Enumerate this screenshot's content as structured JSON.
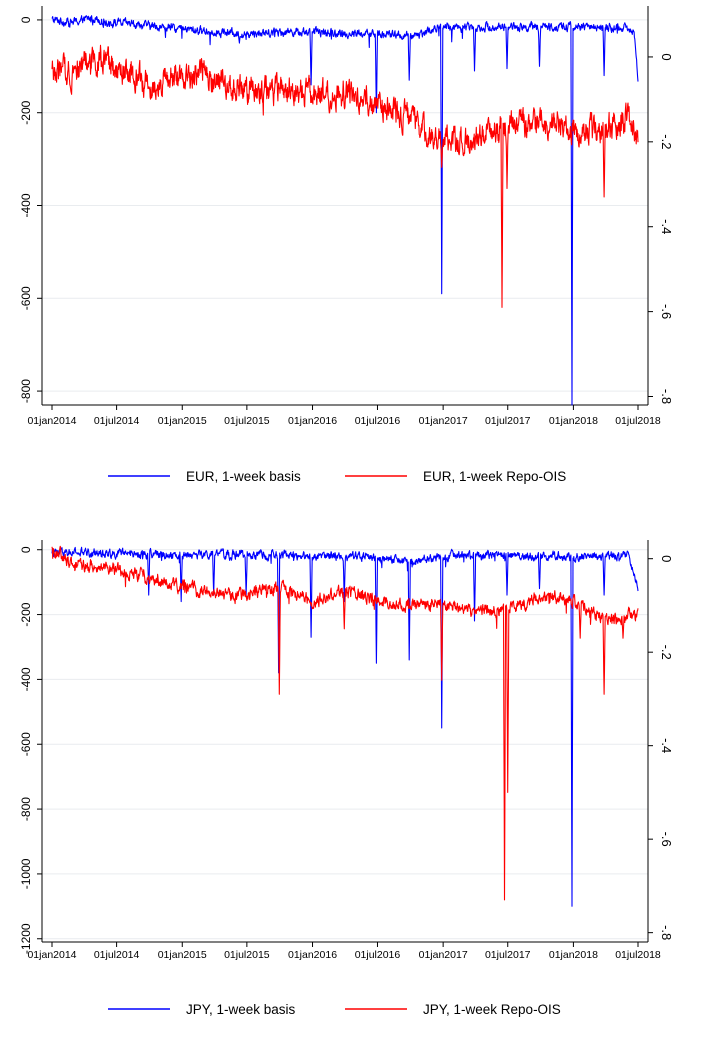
{
  "colors": {
    "basis": "#0000ff",
    "repo": "#ff0000",
    "axis": "#000000",
    "grid": "#e9ecef"
  },
  "x_tick_labels": [
    "01jan2014",
    "01jul2014",
    "01jan2015",
    "01jul2015",
    "01jan2016",
    "01jul2016",
    "01jan2017",
    "01jul2017",
    "01jan2018",
    "01jul2018"
  ],
  "chart_data": [
    {
      "type": "line",
      "title": "",
      "xlabel": "",
      "ylabel": "",
      "x_range": [
        "2014-01-01",
        "2018-07-01"
      ],
      "ylim_left": [
        -830,
        30
      ],
      "ylim_right": [
        -0.82,
        0.12
      ],
      "left_ticks": [
        0,
        -200,
        -400,
        -600,
        -800
      ],
      "left_tick_labels": [
        "0",
        "-200",
        "-400",
        "-600",
        "-800"
      ],
      "right_ticks": [
        0,
        -0.2,
        -0.4,
        -0.6,
        -0.8
      ],
      "right_tick_labels": [
        "0",
        "-.2",
        "-.4",
        "-.6",
        "-.8"
      ],
      "grid": true,
      "legend_position": "bottom",
      "series": [
        {
          "name": "EUR, 1-week basis",
          "axis": "left",
          "color": "#0000ff",
          "points": [
            [
              "2014-01-01",
              0
            ],
            [
              "2014-03-01",
              -5
            ],
            [
              "2014-05-01",
              5
            ],
            [
              "2014-06-01",
              -5
            ],
            [
              "2014-08-01",
              -8
            ],
            [
              "2014-11-01",
              -15
            ],
            [
              "2015-01-01",
              -20
            ],
            [
              "2015-04-01",
              -25
            ],
            [
              "2015-07-01",
              -30
            ],
            [
              "2015-10-01",
              -25
            ],
            [
              "2016-01-01",
              -25
            ],
            [
              "2016-04-01",
              -30
            ],
            [
              "2016-07-01",
              -30
            ],
            [
              "2016-10-01",
              -35
            ],
            [
              "2017-01-01",
              -15
            ],
            [
              "2017-04-01",
              -15
            ],
            [
              "2017-07-01",
              -15
            ],
            [
              "2017-10-01",
              -15
            ],
            [
              "2018-01-01",
              -15
            ],
            [
              "2018-04-01",
              -15
            ],
            [
              "2018-06-20",
              -20
            ],
            [
              "2018-07-01",
              -130
            ]
          ],
          "spikes": [
            [
              "2015-06-10",
              -50
            ],
            [
              "2015-12-28",
              -140
            ],
            [
              "2016-06-28",
              -200
            ],
            [
              "2016-09-28",
              -130
            ],
            [
              "2016-12-28",
              -590
            ],
            [
              "2017-03-30",
              -110
            ],
            [
              "2017-06-29",
              -105
            ],
            [
              "2017-09-28",
              -100
            ],
            [
              "2017-12-28",
              -830
            ],
            [
              "2018-03-28",
              -120
            ]
          ]
        },
        {
          "name": "EUR, 1-week Repo-OIS",
          "axis": "right",
          "color": "#ff0000",
          "points": [
            [
              "2014-01-01",
              -0.04
            ],
            [
              "2014-03-01",
              -0.03
            ],
            [
              "2014-05-01",
              0.0
            ],
            [
              "2014-07-01",
              -0.04
            ],
            [
              "2014-10-01",
              -0.06
            ],
            [
              "2015-01-01",
              -0.05
            ],
            [
              "2015-03-01",
              -0.03
            ],
            [
              "2015-05-01",
              -0.07
            ],
            [
              "2015-07-01",
              -0.08
            ],
            [
              "2015-10-01",
              -0.08
            ],
            [
              "2016-01-01",
              -0.09
            ],
            [
              "2016-04-01",
              -0.085
            ],
            [
              "2016-07-01",
              -0.11
            ],
            [
              "2016-10-01",
              -0.145
            ],
            [
              "2017-01-01",
              -0.2
            ],
            [
              "2017-04-01",
              -0.195
            ],
            [
              "2017-07-01",
              -0.16
            ],
            [
              "2017-10-01",
              -0.16
            ],
            [
              "2018-01-01",
              -0.17
            ],
            [
              "2018-04-01",
              -0.17
            ],
            [
              "2018-06-01",
              -0.14
            ],
            [
              "2018-07-01",
              -0.18
            ]
          ],
          "spikes": [
            [
              "2016-12-28",
              -0.26
            ],
            [
              "2017-06-15",
              -0.59
            ],
            [
              "2017-06-29",
              -0.31
            ],
            [
              "2018-03-28",
              -0.33
            ]
          ]
        }
      ]
    },
    {
      "type": "line",
      "title": "",
      "xlabel": "",
      "ylabel": "",
      "x_range": [
        "2014-01-01",
        "2018-07-01"
      ],
      "ylim_left": [
        -1210,
        30
      ],
      "ylim_right": [
        -0.82,
        0.04
      ],
      "left_ticks": [
        0,
        -200,
        -400,
        -600,
        -800,
        -1000,
        -1200
      ],
      "left_tick_labels": [
        "0",
        "-200",
        "-400",
        "-600",
        "-800",
        "-1000",
        "-1200"
      ],
      "right_ticks": [
        0,
        -0.2,
        -0.4,
        -0.6,
        -0.8
      ],
      "right_tick_labels": [
        "0",
        "-.2",
        "-.4",
        "-.6",
        "-.8"
      ],
      "grid": true,
      "legend_position": "bottom",
      "series": [
        {
          "name": "JPY, 1-week basis",
          "axis": "left",
          "color": "#0000ff",
          "points": [
            [
              "2014-01-01",
              -10
            ],
            [
              "2014-06-01",
              -10
            ],
            [
              "2015-01-01",
              -15
            ],
            [
              "2015-06-01",
              -15
            ],
            [
              "2016-01-01",
              -20
            ],
            [
              "2016-06-01",
              -20
            ],
            [
              "2016-10-01",
              -40
            ],
            [
              "2017-01-01",
              -20
            ],
            [
              "2017-06-01",
              -15
            ],
            [
              "2017-10-01",
              -20
            ],
            [
              "2018-01-01",
              -20
            ],
            [
              "2018-06-01",
              -20
            ],
            [
              "2018-07-01",
              -120
            ]
          ],
          "spikes": [
            [
              "2014-09-29",
              -140
            ],
            [
              "2014-12-29",
              -160
            ],
            [
              "2015-03-30",
              -140
            ],
            [
              "2015-06-29",
              -140
            ],
            [
              "2015-09-28",
              -380
            ],
            [
              "2015-12-28",
              -270
            ],
            [
              "2016-03-30",
              -160
            ],
            [
              "2016-06-28",
              -350
            ],
            [
              "2016-09-28",
              -340
            ],
            [
              "2016-12-28",
              -550
            ],
            [
              "2017-03-30",
              -220
            ],
            [
              "2017-06-29",
              -140
            ],
            [
              "2017-09-28",
              -120
            ],
            [
              "2017-12-28",
              -1100
            ],
            [
              "2018-03-28",
              -140
            ]
          ]
        },
        {
          "name": "JPY, 1-week Repo-OIS",
          "axis": "right",
          "color": "#ff0000",
          "points": [
            [
              "2014-01-01",
              0.02
            ],
            [
              "2014-03-01",
              -0.01
            ],
            [
              "2014-06-01",
              -0.02
            ],
            [
              "2014-10-01",
              -0.04
            ],
            [
              "2015-01-01",
              -0.06
            ],
            [
              "2015-06-01",
              -0.08
            ],
            [
              "2015-10-01",
              -0.06
            ],
            [
              "2016-01-01",
              -0.09
            ],
            [
              "2016-04-01",
              -0.07
            ],
            [
              "2016-07-01",
              -0.09
            ],
            [
              "2016-10-01",
              -0.1
            ],
            [
              "2017-01-01",
              -0.1
            ],
            [
              "2017-04-01",
              -0.11
            ],
            [
              "2017-07-01",
              -0.11
            ],
            [
              "2017-10-01",
              -0.08
            ],
            [
              "2018-01-01",
              -0.09
            ],
            [
              "2018-04-01",
              -0.13
            ],
            [
              "2018-07-01",
              -0.12
            ]
          ],
          "spikes": [
            [
              "2015-09-30",
              -0.29
            ],
            [
              "2016-03-30",
              -0.15
            ],
            [
              "2016-12-28",
              -0.26
            ],
            [
              "2017-06-22",
              -0.73
            ],
            [
              "2017-07-01",
              -0.5
            ],
            [
              "2018-01-20",
              -0.17
            ],
            [
              "2018-03-28",
              -0.29
            ],
            [
              "2018-05-20",
              -0.17
            ]
          ]
        }
      ]
    }
  ]
}
